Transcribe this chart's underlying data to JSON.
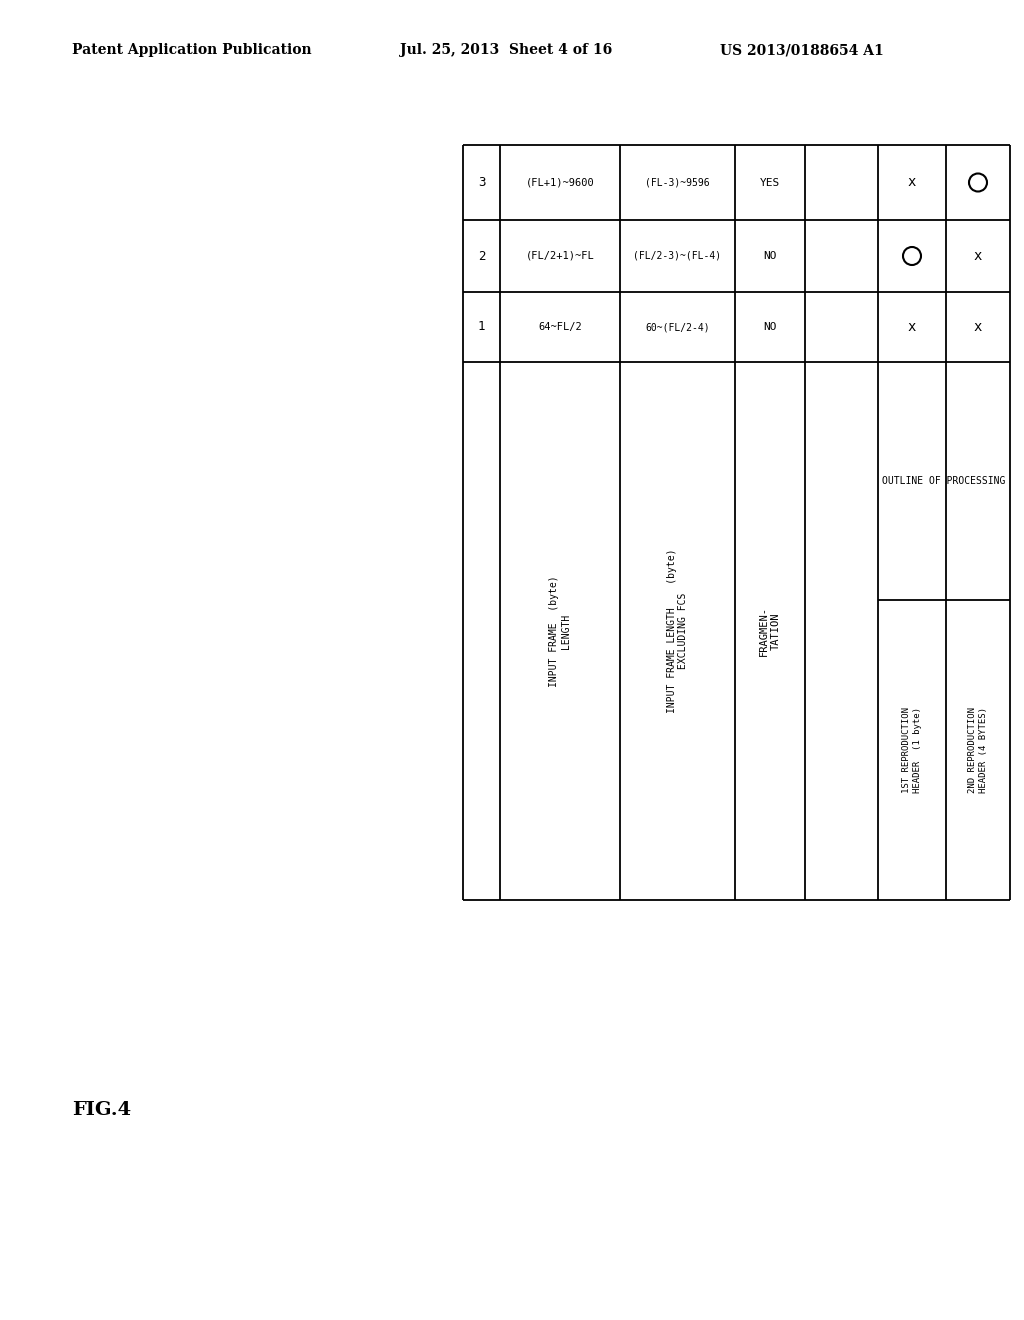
{
  "page_header_left": "Patent Application Publication",
  "page_header_center": "Jul. 25, 2013  Sheet 4 of 16",
  "page_header_right": "US 2013/0188654 A1",
  "figure_label": "FIG.4",
  "table_title": "OUTLINE OF PROCESSING",
  "background_color": "#ffffff",
  "text_color": "#000000",
  "line_color": "#000000",
  "table": {
    "col0_header": "",
    "col1_header": "INPUT FRAME\nLENGTH  (byte)",
    "col2_header": "INPUT FRAME LENGTH\nEXCLUDING FCS\n(byte)",
    "col3_header": "FRAGMEN-\nTATION",
    "col4_header": "1ST REPRODUCTION\nHEADER  (1 byte)",
    "col5_header": "2ND REPRODUCTION\nHEADER (4 BYTES)",
    "outline_header": "OUTLINE OF PROCESSING",
    "rows": [
      [
        "1",
        "64~FL/2",
        "60~(FL/2-4)",
        "NO",
        "x",
        "x"
      ],
      [
        "2",
        "(FL/2+1)~FL",
        "(FL/2-3)~(FL-4)",
        "NO",
        "O",
        "x"
      ],
      [
        "3",
        "(FL+1)~9600",
        "(FL-3)~9596",
        "YES",
        "x",
        "O"
      ]
    ]
  }
}
